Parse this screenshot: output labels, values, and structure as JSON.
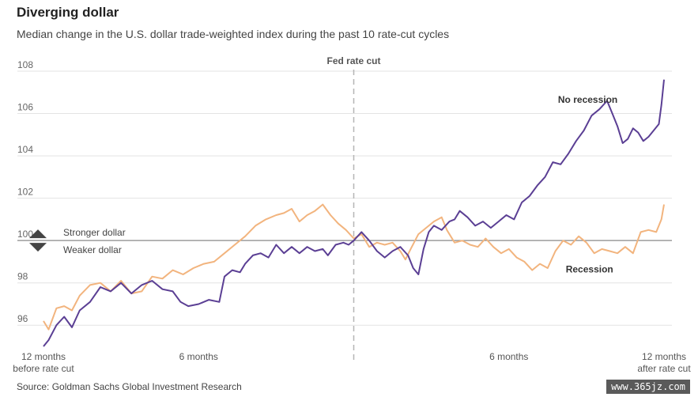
{
  "title": "Diverging dollar",
  "subtitle": "Median change in the U.S. dollar trade-weighted index during the past 10 rate-cut cycles",
  "source": "Source: Goldman Sachs Global Investment Research",
  "watermark": "www.365jz.com",
  "chart_data": {
    "type": "line",
    "title": "Diverging dollar",
    "subtitle": "Median change in the U.S. dollar trade-weighted index during the past 10 rate-cut cycles",
    "xlabel": "",
    "ylabel": "",
    "x_range": [
      -12,
      12
    ],
    "ylim": [
      95,
      108
    ],
    "yticks": [
      96,
      98,
      100,
      102,
      104,
      106,
      108
    ],
    "grid": true,
    "baseline": 100,
    "x_ticks": [
      {
        "x": -12,
        "line1": "12 months",
        "line2": "before rate cut"
      },
      {
        "x": -6,
        "line1": "6 months",
        "line2": ""
      },
      {
        "x": 6,
        "line1": "6 months",
        "line2": ""
      },
      {
        "x": 12,
        "line1": "12 months",
        "line2": "after rate cut"
      }
    ],
    "annotations": {
      "fed_cut_label": "Fed rate cut",
      "fed_cut_x": 0,
      "stronger": "Stronger dollar",
      "weaker": "Weaker dollar"
    },
    "series": [
      {
        "name": "No recession",
        "color": "#5b3f94",
        "points": [
          [
            -12,
            95.0
          ],
          [
            -11.8,
            95.3
          ],
          [
            -11.5,
            96.0
          ],
          [
            -11.2,
            96.4
          ],
          [
            -10.9,
            95.9
          ],
          [
            -10.6,
            96.7
          ],
          [
            -10.2,
            97.1
          ],
          [
            -9.8,
            97.8
          ],
          [
            -9.4,
            97.6
          ],
          [
            -9.0,
            98.0
          ],
          [
            -8.6,
            97.5
          ],
          [
            -8.2,
            97.9
          ],
          [
            -7.8,
            98.1
          ],
          [
            -7.4,
            97.7
          ],
          [
            -7.0,
            97.6
          ],
          [
            -6.7,
            97.1
          ],
          [
            -6.4,
            96.9
          ],
          [
            -6.0,
            97.0
          ],
          [
            -5.6,
            97.2
          ],
          [
            -5.2,
            97.1
          ],
          [
            -5.0,
            98.3
          ],
          [
            -4.7,
            98.6
          ],
          [
            -4.4,
            98.5
          ],
          [
            -4.2,
            98.9
          ],
          [
            -3.9,
            99.3
          ],
          [
            -3.6,
            99.4
          ],
          [
            -3.3,
            99.2
          ],
          [
            -3.0,
            99.8
          ],
          [
            -2.7,
            99.4
          ],
          [
            -2.4,
            99.7
          ],
          [
            -2.1,
            99.4
          ],
          [
            -1.8,
            99.7
          ],
          [
            -1.5,
            99.5
          ],
          [
            -1.2,
            99.6
          ],
          [
            -1.0,
            99.3
          ],
          [
            -0.7,
            99.8
          ],
          [
            -0.4,
            99.9
          ],
          [
            -0.2,
            99.8
          ],
          [
            0.0,
            100.0
          ],
          [
            0.3,
            100.4
          ],
          [
            0.6,
            100.0
          ],
          [
            0.9,
            99.5
          ],
          [
            1.2,
            99.2
          ],
          [
            1.5,
            99.5
          ],
          [
            1.8,
            99.7
          ],
          [
            2.1,
            99.3
          ],
          [
            2.3,
            98.7
          ],
          [
            2.5,
            98.4
          ],
          [
            2.7,
            99.6
          ],
          [
            2.9,
            100.4
          ],
          [
            3.1,
            100.7
          ],
          [
            3.4,
            100.5
          ],
          [
            3.7,
            100.9
          ],
          [
            3.9,
            101.0
          ],
          [
            4.1,
            101.4
          ],
          [
            4.4,
            101.1
          ],
          [
            4.7,
            100.7
          ],
          [
            5.0,
            100.9
          ],
          [
            5.3,
            100.6
          ],
          [
            5.6,
            100.9
          ],
          [
            5.9,
            101.2
          ],
          [
            6.2,
            101.0
          ],
          [
            6.5,
            101.8
          ],
          [
            6.8,
            102.1
          ],
          [
            7.1,
            102.6
          ],
          [
            7.4,
            103.0
          ],
          [
            7.7,
            103.7
          ],
          [
            8.0,
            103.6
          ],
          [
            8.3,
            104.1
          ],
          [
            8.6,
            104.7
          ],
          [
            8.9,
            105.2
          ],
          [
            9.2,
            105.9
          ],
          [
            9.5,
            106.2
          ],
          [
            9.8,
            106.6
          ],
          [
            10.0,
            106.0
          ],
          [
            10.2,
            105.4
          ],
          [
            10.4,
            104.6
          ],
          [
            10.6,
            104.8
          ],
          [
            10.8,
            105.3
          ],
          [
            11.0,
            105.1
          ],
          [
            11.2,
            104.7
          ],
          [
            11.4,
            104.9
          ],
          [
            11.6,
            105.2
          ],
          [
            11.8,
            105.5
          ],
          [
            11.9,
            106.4
          ],
          [
            12.0,
            107.6
          ]
        ]
      },
      {
        "name": "Recession",
        "color": "#f2b47e",
        "points": [
          [
            -12,
            96.2
          ],
          [
            -11.8,
            95.8
          ],
          [
            -11.5,
            96.8
          ],
          [
            -11.2,
            96.9
          ],
          [
            -10.9,
            96.7
          ],
          [
            -10.6,
            97.4
          ],
          [
            -10.2,
            97.9
          ],
          [
            -9.8,
            98.0
          ],
          [
            -9.4,
            97.6
          ],
          [
            -9.0,
            98.1
          ],
          [
            -8.6,
            97.5
          ],
          [
            -8.2,
            97.6
          ],
          [
            -7.8,
            98.3
          ],
          [
            -7.4,
            98.2
          ],
          [
            -7.0,
            98.6
          ],
          [
            -6.6,
            98.4
          ],
          [
            -6.2,
            98.7
          ],
          [
            -5.8,
            98.9
          ],
          [
            -5.4,
            99.0
          ],
          [
            -5.0,
            99.4
          ],
          [
            -4.6,
            99.8
          ],
          [
            -4.2,
            100.2
          ],
          [
            -3.8,
            100.7
          ],
          [
            -3.4,
            101.0
          ],
          [
            -3.0,
            101.2
          ],
          [
            -2.7,
            101.3
          ],
          [
            -2.4,
            101.5
          ],
          [
            -2.1,
            100.9
          ],
          [
            -1.8,
            101.2
          ],
          [
            -1.5,
            101.4
          ],
          [
            -1.2,
            101.7
          ],
          [
            -0.9,
            101.2
          ],
          [
            -0.6,
            100.8
          ],
          [
            -0.3,
            100.5
          ],
          [
            0.0,
            100.1
          ],
          [
            0.3,
            100.3
          ],
          [
            0.6,
            99.7
          ],
          [
            0.9,
            99.9
          ],
          [
            1.2,
            99.8
          ],
          [
            1.5,
            99.9
          ],
          [
            1.8,
            99.5
          ],
          [
            2.0,
            99.1
          ],
          [
            2.2,
            99.6
          ],
          [
            2.5,
            100.3
          ],
          [
            2.8,
            100.6
          ],
          [
            3.1,
            100.9
          ],
          [
            3.4,
            101.1
          ],
          [
            3.6,
            100.5
          ],
          [
            3.9,
            99.9
          ],
          [
            4.2,
            100.0
          ],
          [
            4.5,
            99.8
          ],
          [
            4.8,
            99.7
          ],
          [
            5.1,
            100.1
          ],
          [
            5.4,
            99.7
          ],
          [
            5.7,
            99.4
          ],
          [
            6.0,
            99.6
          ],
          [
            6.3,
            99.2
          ],
          [
            6.6,
            99.0
          ],
          [
            6.9,
            98.6
          ],
          [
            7.2,
            98.9
          ],
          [
            7.5,
            98.7
          ],
          [
            7.8,
            99.5
          ],
          [
            8.1,
            100.0
          ],
          [
            8.4,
            99.8
          ],
          [
            8.7,
            100.2
          ],
          [
            9.0,
            99.9
          ],
          [
            9.3,
            99.4
          ],
          [
            9.6,
            99.6
          ],
          [
            9.9,
            99.5
          ],
          [
            10.2,
            99.4
          ],
          [
            10.5,
            99.7
          ],
          [
            10.8,
            99.4
          ],
          [
            11.1,
            100.4
          ],
          [
            11.4,
            100.5
          ],
          [
            11.7,
            100.4
          ],
          [
            11.9,
            101.0
          ],
          [
            12.0,
            101.7
          ]
        ]
      }
    ],
    "series_labels": [
      {
        "name": "No recession",
        "x": 7.9,
        "y": 106.5
      },
      {
        "name": "Recession",
        "x": 8.2,
        "y": 98.5
      }
    ]
  }
}
